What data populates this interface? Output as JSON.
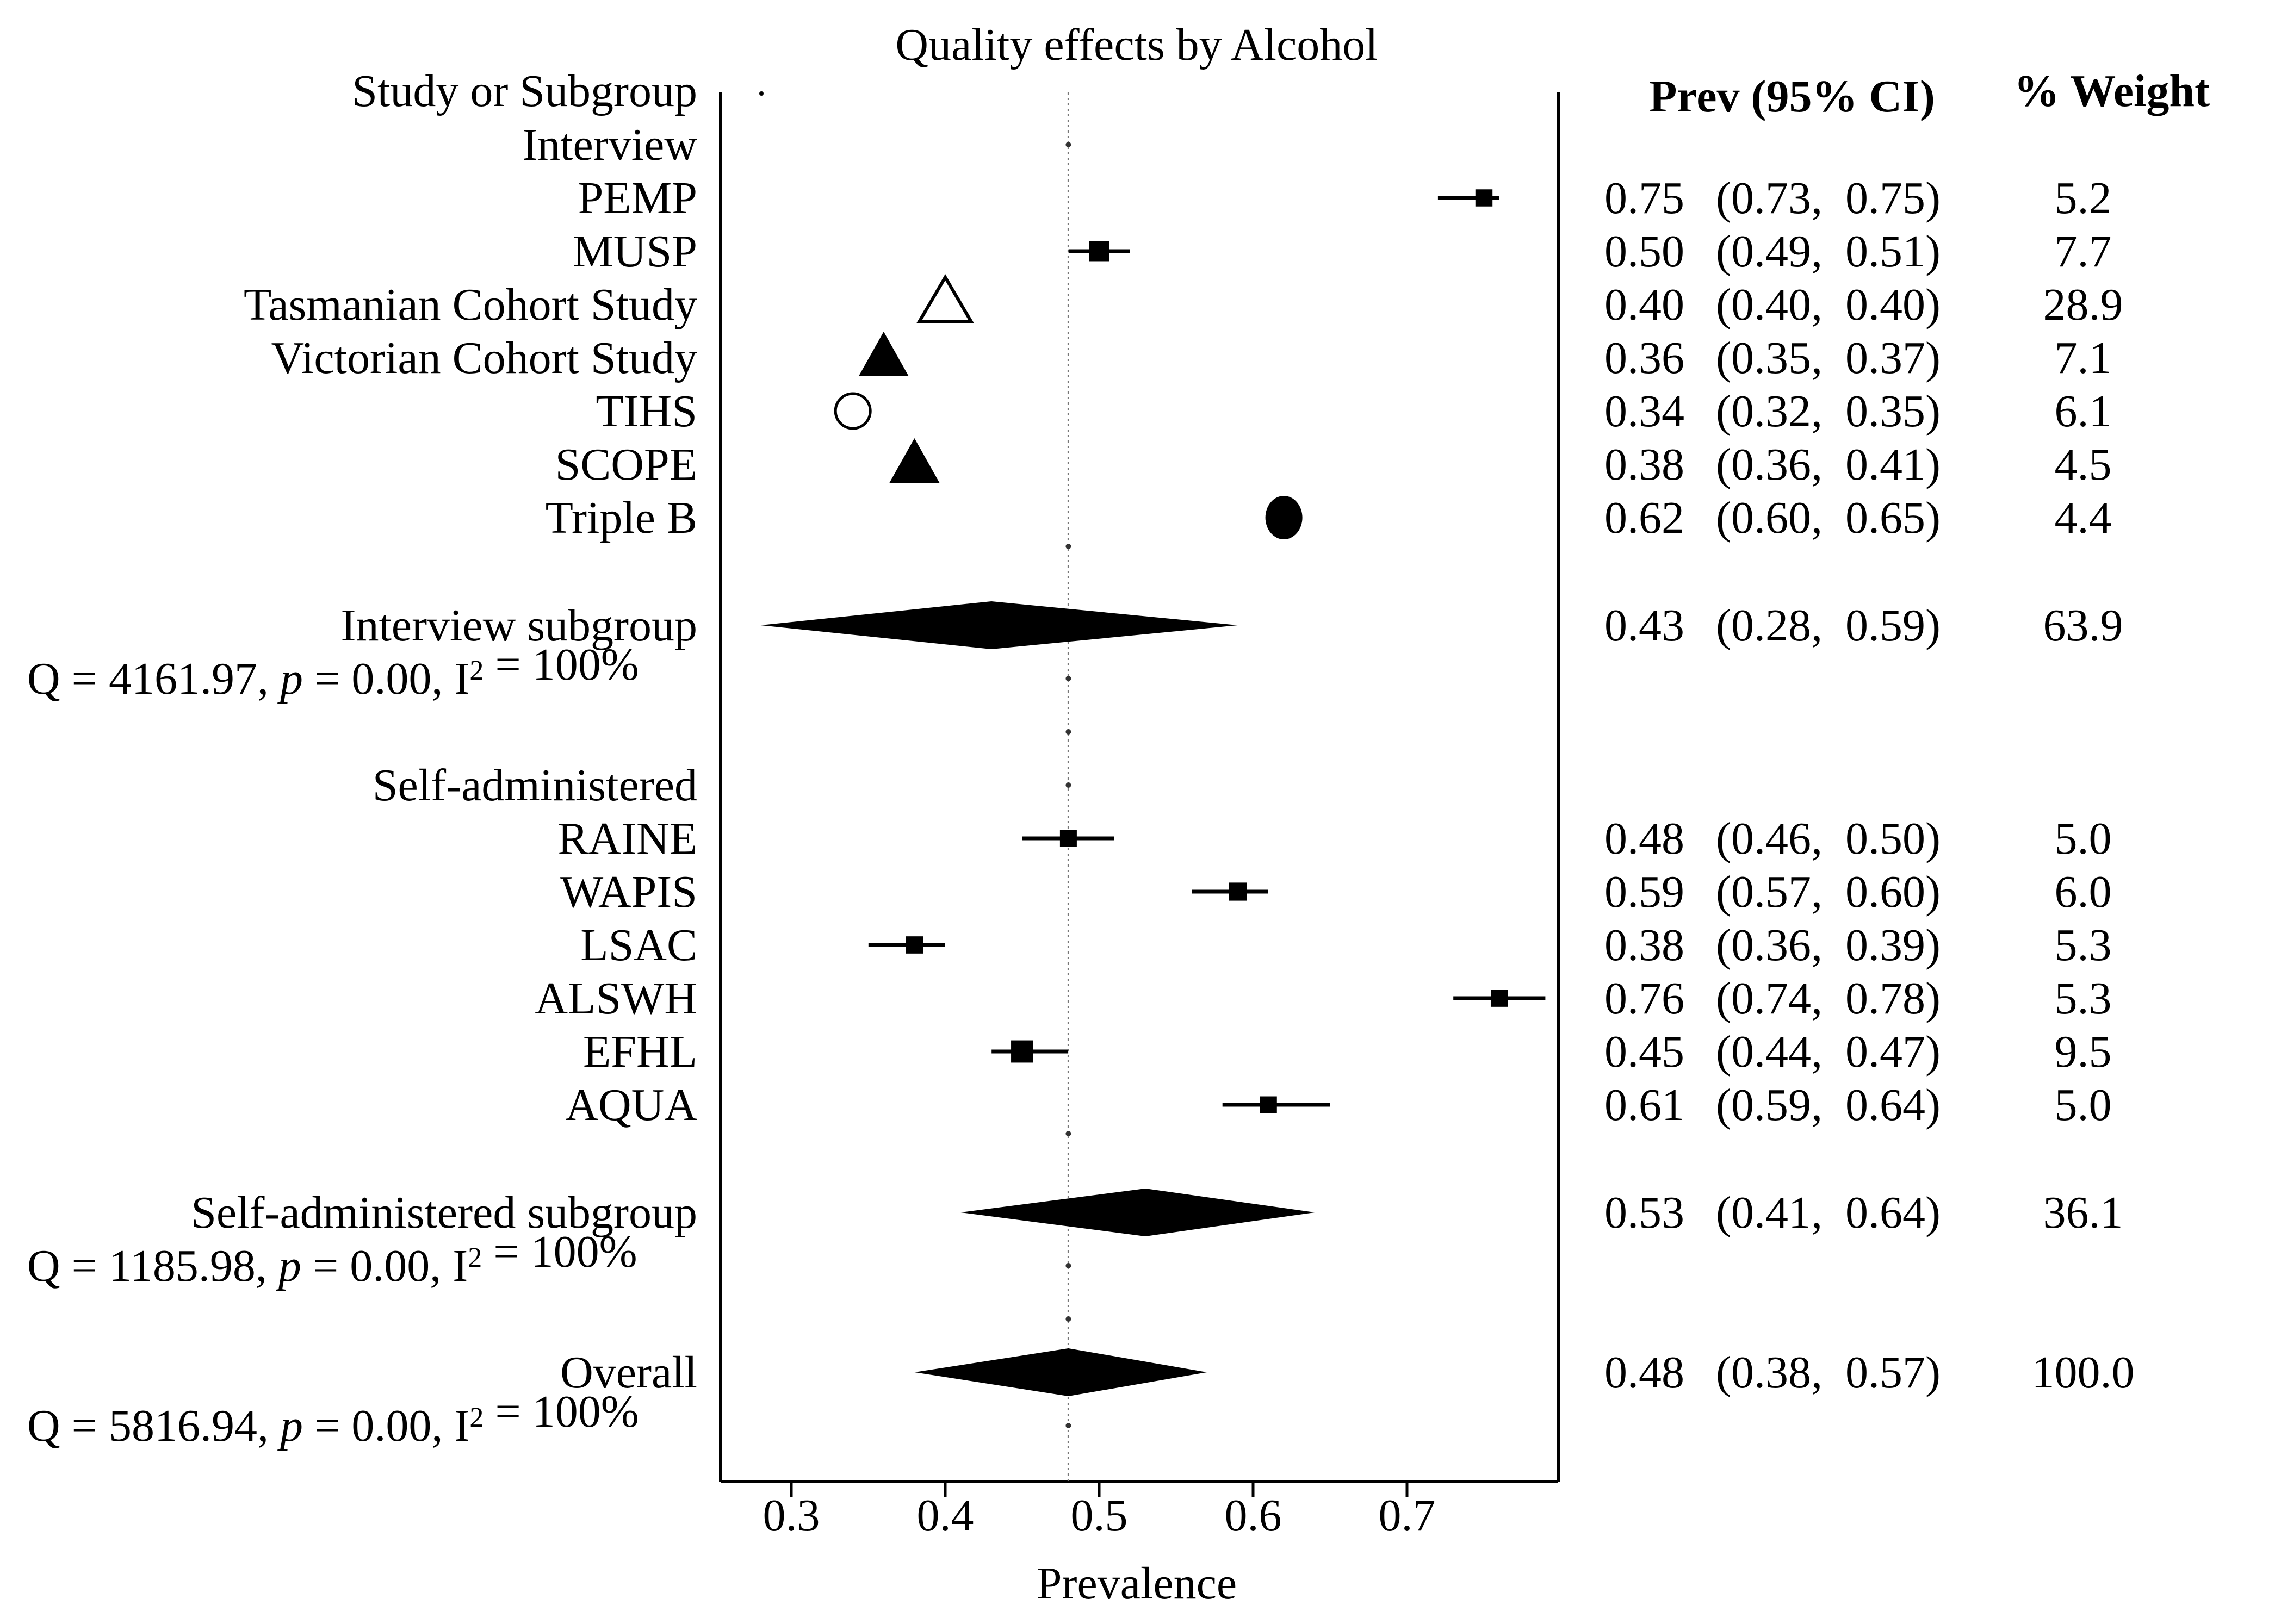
{
  "chart_data": {
    "type": "forest",
    "title": "Quality effects by Alcohol",
    "xlabel": "Prevalence",
    "xlim": [
      0.25,
      0.8
    ],
    "xticks": [
      "0.3",
      "0.4",
      "0.5",
      "0.6",
      "0.7"
    ],
    "reference_line": 0.48,
    "headers": {
      "study": "Study or Subgroup",
      "prev": "Prev (95% CI)",
      "weight": "% Weight"
    },
    "groups": [
      {
        "name": "Interview",
        "studies": [
          {
            "name": "PEMP",
            "prev": 0.75,
            "lo": 0.73,
            "hi": 0.75,
            "weight": 5.2,
            "marker": "square",
            "prev_text": "0.75",
            "ci_text": "(0.73,  0.75)",
            "weight_text": "5.2"
          },
          {
            "name": "MUSP",
            "prev": 0.5,
            "lo": 0.49,
            "hi": 0.51,
            "weight": 7.7,
            "marker": "square",
            "prev_text": "0.50",
            "ci_text": "(0.49,  0.51)",
            "weight_text": "7.7"
          },
          {
            "name": "Tasmanian Cohort Study",
            "prev": 0.4,
            "lo": 0.4,
            "hi": 0.4,
            "weight": 28.9,
            "marker": "open-triangle",
            "prev_text": "0.40",
            "ci_text": "(0.40,  0.40)",
            "weight_text": "28.9"
          },
          {
            "name": "Victorian Cohort Study",
            "prev": 0.36,
            "lo": 0.35,
            "hi": 0.37,
            "weight": 7.1,
            "marker": "filled-triangle",
            "prev_text": "0.36",
            "ci_text": "(0.35,  0.37)",
            "weight_text": "7.1"
          },
          {
            "name": "TIHS",
            "prev": 0.34,
            "lo": 0.32,
            "hi": 0.35,
            "weight": 6.1,
            "marker": "open-circle",
            "prev_text": "0.34",
            "ci_text": "(0.32,  0.35)",
            "weight_text": "6.1"
          },
          {
            "name": "SCOPE",
            "prev": 0.38,
            "lo": 0.36,
            "hi": 0.41,
            "weight": 4.5,
            "marker": "filled-triangle",
            "prev_text": "0.38",
            "ci_text": "(0.36,  0.41)",
            "weight_text": "4.5"
          },
          {
            "name": "Triple B",
            "prev": 0.62,
            "lo": 0.6,
            "hi": 0.65,
            "weight": 4.4,
            "marker": "filled-circle",
            "prev_text": "0.62",
            "ci_text": "(0.60,  0.65)",
            "weight_text": "4.4"
          }
        ],
        "subgroup": {
          "name": "Interview subgroup",
          "prev": 0.43,
          "lo": 0.28,
          "hi": 0.59,
          "weight": 63.9,
          "prev_text": "0.43",
          "ci_text": "(0.28,  0.59)",
          "weight_text": "63.9",
          "q_prefix": "Q = 4161.97, ",
          "q_p": "p",
          "q_mid": " = 0.00, I",
          "q_sup": "2",
          "q_suffix": " = 100%"
        }
      },
      {
        "name": "Self-administered",
        "studies": [
          {
            "name": "RAINE",
            "prev": 0.48,
            "lo": 0.46,
            "hi": 0.5,
            "weight": 5.0,
            "marker": "square",
            "prev_text": "0.48",
            "ci_text": "(0.46,  0.50)",
            "weight_text": "5.0"
          },
          {
            "name": "WAPIS",
            "prev": 0.59,
            "lo": 0.57,
            "hi": 0.6,
            "weight": 6.0,
            "marker": "square",
            "prev_text": "0.59",
            "ci_text": "(0.57,  0.60)",
            "weight_text": "6.0"
          },
          {
            "name": "LSAC",
            "prev": 0.38,
            "lo": 0.36,
            "hi": 0.39,
            "weight": 5.3,
            "marker": "square",
            "prev_text": "0.38",
            "ci_text": "(0.36,  0.39)",
            "weight_text": "5.3"
          },
          {
            "name": "ALSWH",
            "prev": 0.76,
            "lo": 0.74,
            "hi": 0.78,
            "weight": 5.3,
            "marker": "square",
            "prev_text": "0.76",
            "ci_text": "(0.74,  0.78)",
            "weight_text": "5.3"
          },
          {
            "name": "EFHL",
            "prev": 0.45,
            "lo": 0.44,
            "hi": 0.47,
            "weight": 9.5,
            "marker": "square",
            "prev_text": "0.45",
            "ci_text": "(0.44,  0.47)",
            "weight_text": "9.5"
          },
          {
            "name": "AQUA",
            "prev": 0.61,
            "lo": 0.59,
            "hi": 0.64,
            "weight": 5.0,
            "marker": "square",
            "prev_text": "0.61",
            "ci_text": "(0.59,  0.64)",
            "weight_text": "5.0"
          }
        ],
        "subgroup": {
          "name": "Self-administered subgroup",
          "prev": 0.53,
          "lo": 0.41,
          "hi": 0.64,
          "weight": 36.1,
          "prev_text": "0.53",
          "ci_text": "(0.41,  0.64)",
          "weight_text": "36.1",
          "q_prefix": "Q = 1185.98, ",
          "q_p": "p",
          "q_mid": " = 0.00, I",
          "q_sup": "2",
          "q_suffix": " = 100%"
        }
      }
    ],
    "overall": {
      "name": "Overall",
      "prev": 0.48,
      "lo": 0.38,
      "hi": 0.57,
      "weight": 100.0,
      "prev_text": "0.48",
      "ci_text": "(0.38,  0.57)",
      "weight_text": "100.0",
      "q_prefix": "Q = 5816.94, ",
      "q_p": "p",
      "q_mid": " = 0.00, I",
      "q_sup": "2",
      "q_suffix": " = 100%"
    }
  }
}
